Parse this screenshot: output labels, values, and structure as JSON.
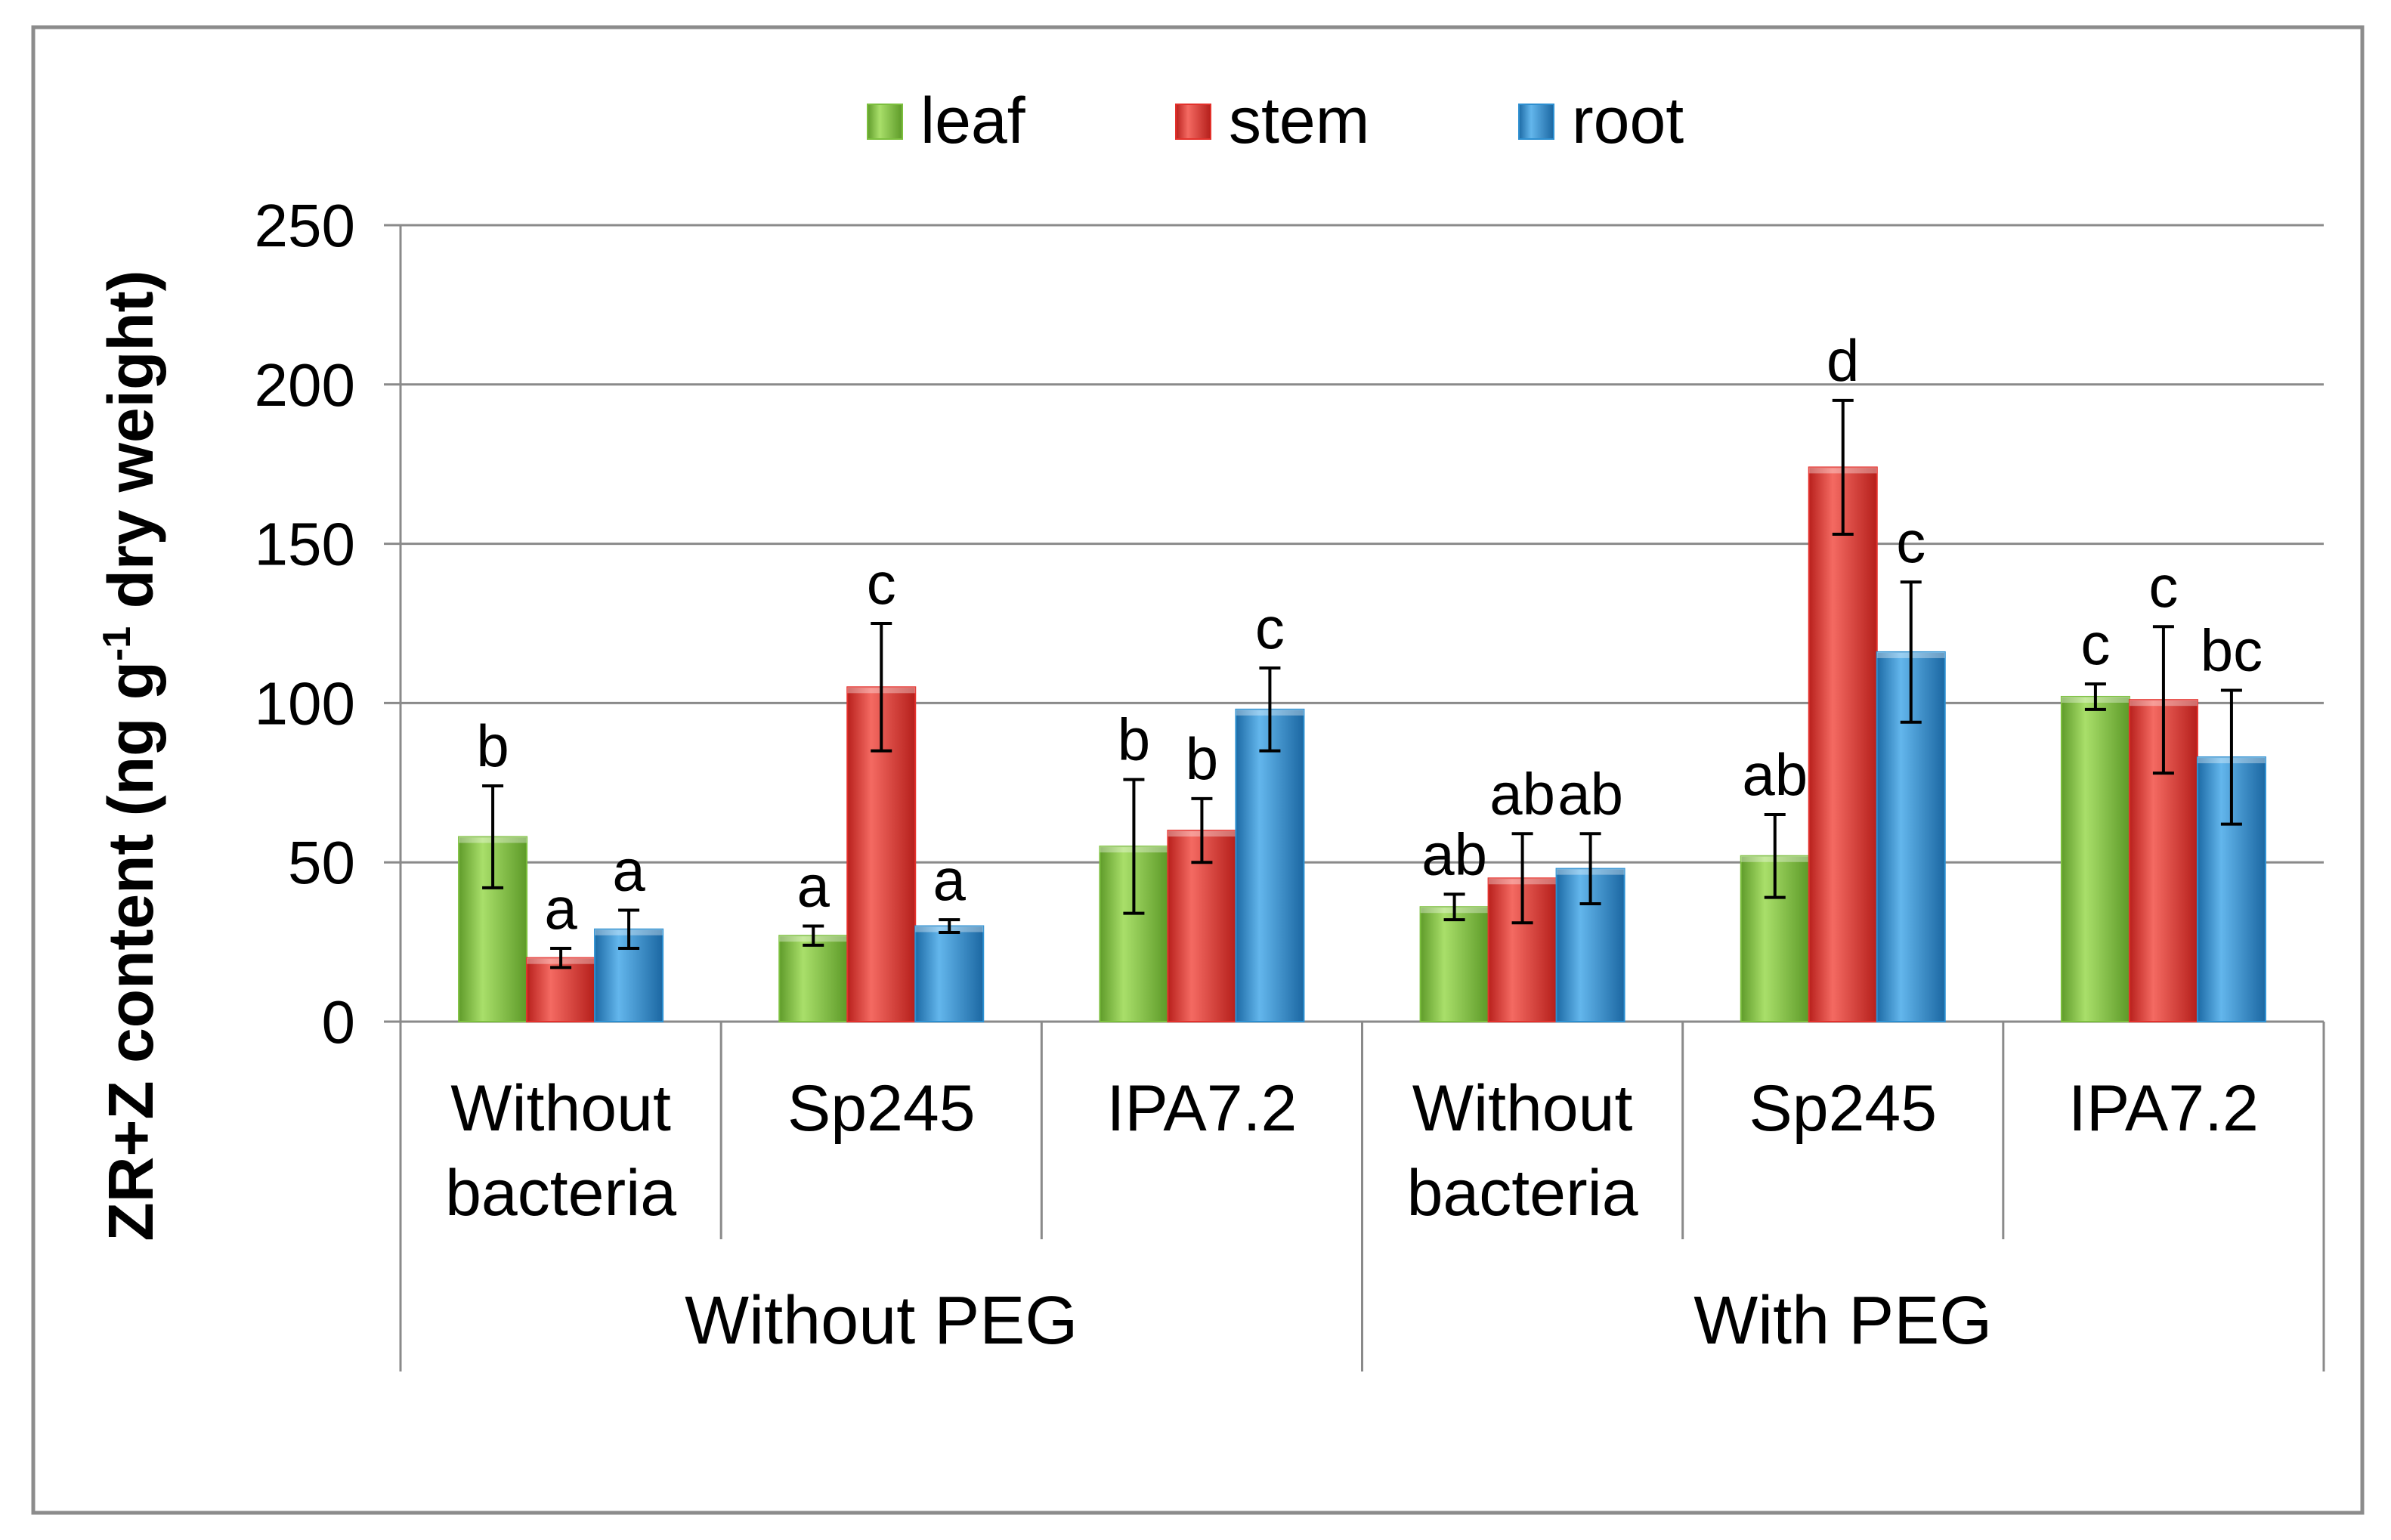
{
  "chart_data": {
    "type": "bar",
    "title": "",
    "ylabel": {
      "main": "ZR+Z content (ng g",
      "superscript": "-1",
      "tail": " dry weight)"
    },
    "xlabel": "",
    "ylim": [
      0,
      250
    ],
    "yticks": [
      0,
      50,
      100,
      150,
      200,
      250
    ],
    "grid": true,
    "legend_position": "top-center",
    "groups": [
      {
        "label": "Without PEG",
        "categories": [
          "Without bacteria",
          "Sp245",
          "IPA7.2"
        ]
      },
      {
        "label": "With PEG",
        "categories": [
          "Without bacteria",
          "Sp245",
          "IPA7.2"
        ]
      }
    ],
    "categories": [
      [
        "Without",
        "bacteria"
      ],
      [
        "Sp245"
      ],
      [
        "IPA7.2"
      ],
      [
        "Without",
        "bacteria"
      ],
      [
        "Sp245"
      ],
      [
        "IPA7.2"
      ]
    ],
    "series": [
      {
        "name": "leaf",
        "color": "#7cbf3e",
        "values": [
          58,
          27,
          55,
          36,
          52,
          102
        ],
        "errors": [
          16,
          3,
          21,
          4,
          13,
          4
        ],
        "labels": [
          "b",
          "a",
          "b",
          "ab",
          "ab",
          "c"
        ]
      },
      {
        "name": "stem",
        "color": "#e3312c",
        "values": [
          20,
          105,
          60,
          45,
          174,
          101
        ],
        "errors": [
          3,
          20,
          10,
          14,
          21,
          23
        ],
        "labels": [
          "a",
          "c",
          "b",
          "ab",
          "d",
          "c"
        ]
      },
      {
        "name": "root",
        "color": "#2d8fd0",
        "values": [
          29,
          30,
          98,
          48,
          116,
          83
        ],
        "errors": [
          6,
          2,
          13,
          11,
          22,
          21
        ],
        "labels": [
          "a",
          "a",
          "c",
          "ab",
          "c",
          "bc"
        ]
      }
    ]
  }
}
